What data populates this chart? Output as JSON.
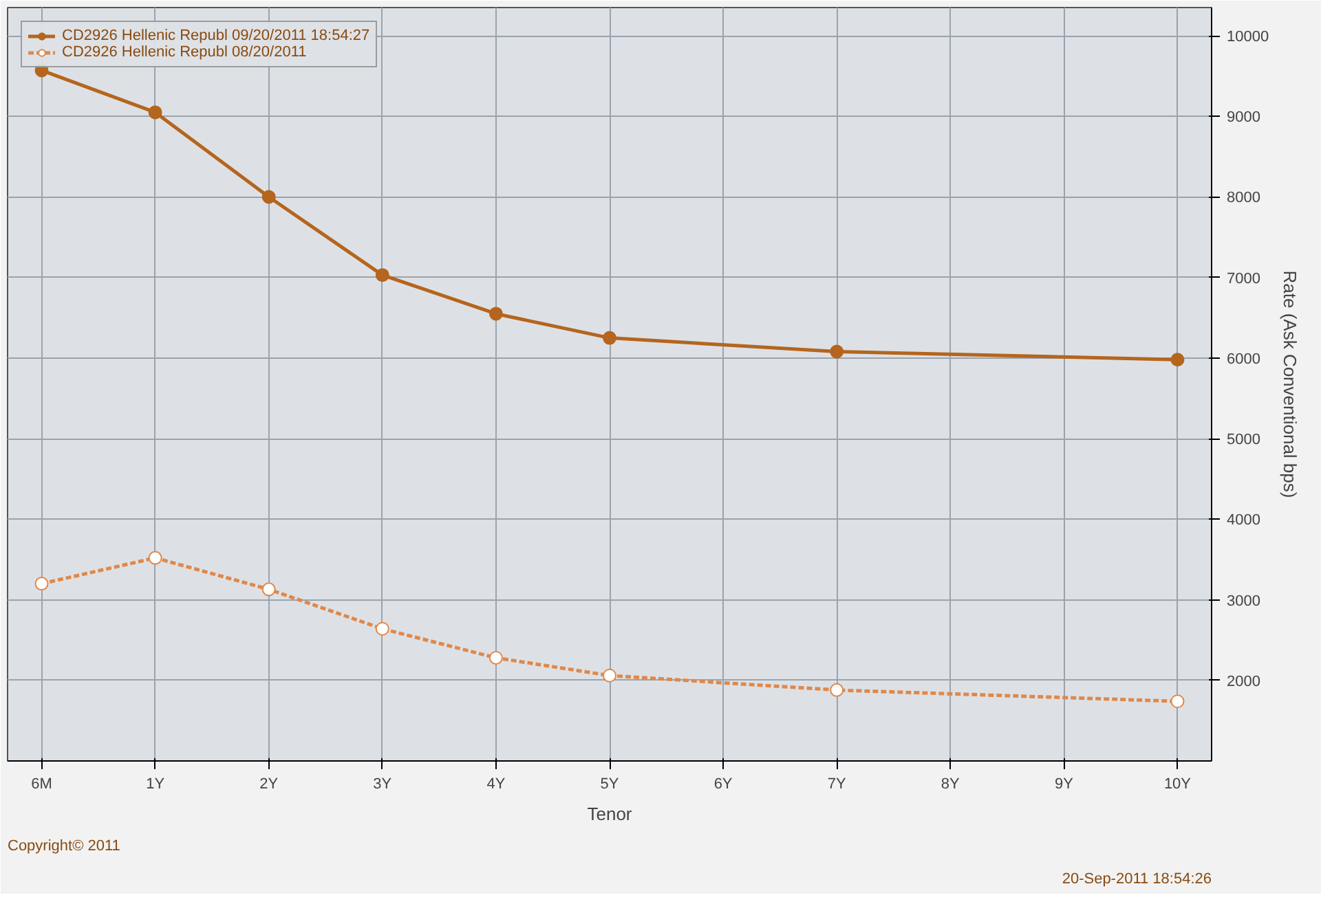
{
  "chart_data": {
    "type": "line",
    "xlabel": "Tenor",
    "ylabel": "Rate (Ask Conventional bps)",
    "categories": [
      "6M",
      "1Y",
      "2Y",
      "3Y",
      "4Y",
      "5Y",
      "6Y",
      "7Y",
      "8Y",
      "9Y",
      "10Y"
    ],
    "series": [
      {
        "name": "CD2926 Hellenic Republ 09/20/2011 18:54:27",
        "color": "#b5651d",
        "line_style": "solid",
        "values": [
          9570,
          9050,
          8000,
          7030,
          6550,
          6250,
          null,
          6080,
          null,
          null,
          5980
        ]
      },
      {
        "name": "CD2926 Hellenic Republ 08/20/2011",
        "color": "#e0884a",
        "line_style": "dashed",
        "values": [
          3200,
          3520,
          3130,
          2640,
          2280,
          2060,
          null,
          1880,
          null,
          null,
          1740
        ]
      }
    ],
    "ylim": [
      1000,
      10350
    ],
    "yticks": [
      2000,
      3000,
      4000,
      5000,
      6000,
      7000,
      8000,
      9000,
      10000
    ],
    "grid": true,
    "legend": "top left",
    "marker": "circle",
    "annotations": [
      "Copyright© 2011",
      "20-Sep-2011 18:54:26"
    ]
  }
}
